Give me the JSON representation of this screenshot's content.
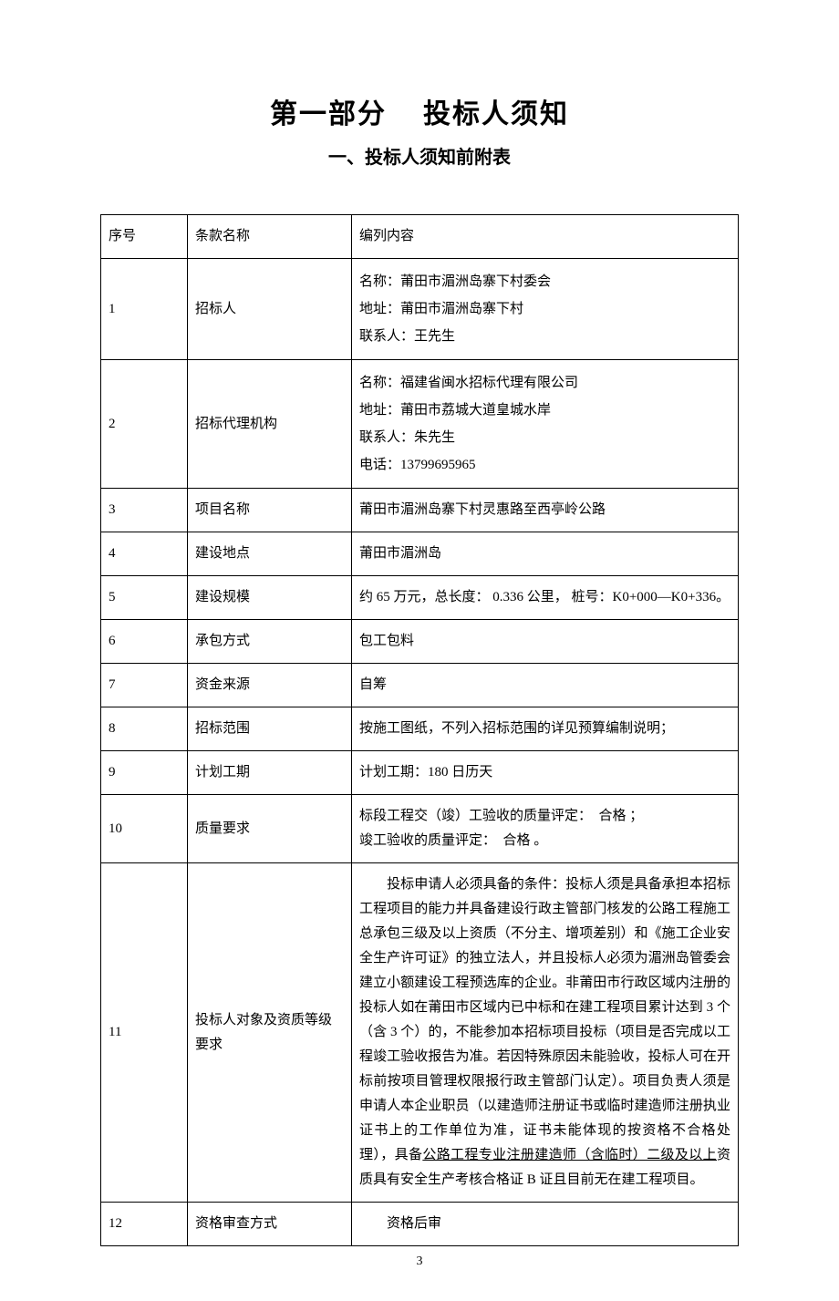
{
  "title_main_left": "第一部分",
  "title_main_right": "投标人须知",
  "title_sub": "一、投标人须知前附表",
  "header": {
    "col1": "序号",
    "col2": "条款名称",
    "col3": "编列内容"
  },
  "rows": [
    {
      "num": "1",
      "name": "招标人",
      "lines": [
        "名称：莆田市湄洲岛寨下村委会",
        "地址：莆田市湄洲岛寨下村",
        "联系人：王先生"
      ]
    },
    {
      "num": "2",
      "name": "招标代理机构",
      "lines": [
        "名称：福建省闽水招标代理有限公司",
        "地址：莆田市荔城大道皇城水岸",
        "联系人：朱先生",
        "电话：13799695965"
      ]
    },
    {
      "num": "3",
      "name": "项目名称",
      "content": "莆田市湄洲岛寨下村灵惠路至西亭岭公路"
    },
    {
      "num": "4",
      "name": "建设地点",
      "content": "莆田市湄洲岛"
    },
    {
      "num": "5",
      "name": "建设规模",
      "content_justify": "约 65 万元，总长度： 0.336 公里， 桩号：K0+000—K0+336。"
    },
    {
      "num": "6",
      "name": "承包方式",
      "content": "包工包料"
    },
    {
      "num": "7",
      "name": "资金来源",
      "content": "自筹"
    },
    {
      "num": "8",
      "name": "招标范围",
      "content": "按施工图纸，不列入招标范围的详见预算编制说明；"
    },
    {
      "num": "9",
      "name": "计划工期",
      "content": "计划工期：180 日历天"
    },
    {
      "num": "10",
      "name": "质量要求",
      "lines": [
        "标段工程交（竣）工验收的质量评定：　合格 ；",
        "竣工验收的质量评定：　合格 。"
      ]
    }
  ],
  "row11": {
    "num": "11",
    "name": "投标人对象及资质等级要求",
    "para_prefix": "投标申请人必须具备的条件：投标人须是具备承担本招标工程项目的能力并具备建设行政主管部门核发的公路工程施工总承包三级及以上资质（不分主、增项差别）和《施工企业安全生产许可证》的独立法人，并且投标人必须为湄洲岛管委会建立小额建设工程预选库的企业。非莆田市行政区域内注册的投标人如在莆田市区域内已中标和在建工程项目累计达到 3 个（含 3 个）的，不能参加本招标项目投标（项目是否完成以工程竣工验收报告为准。若因特殊原因未能验收，投标人可在开标前按项目管理权限报行政主管部门认定）。项目负责人须是申请人本企业职员（以建造师注册证书或临时建造师注册执业证书上的工作单位为准，证书未能体现的按资格不合格处理），具备",
    "para_underline": "公路工程专业注册建造师（含临时）二级及以上",
    "para_suffix": "资质具有安全生产考核合格证 B 证且目前无在建工程项目。"
  },
  "row12": {
    "num": "12",
    "name": "资格审查方式",
    "content": "　　资格后审"
  },
  "page_number": "3"
}
